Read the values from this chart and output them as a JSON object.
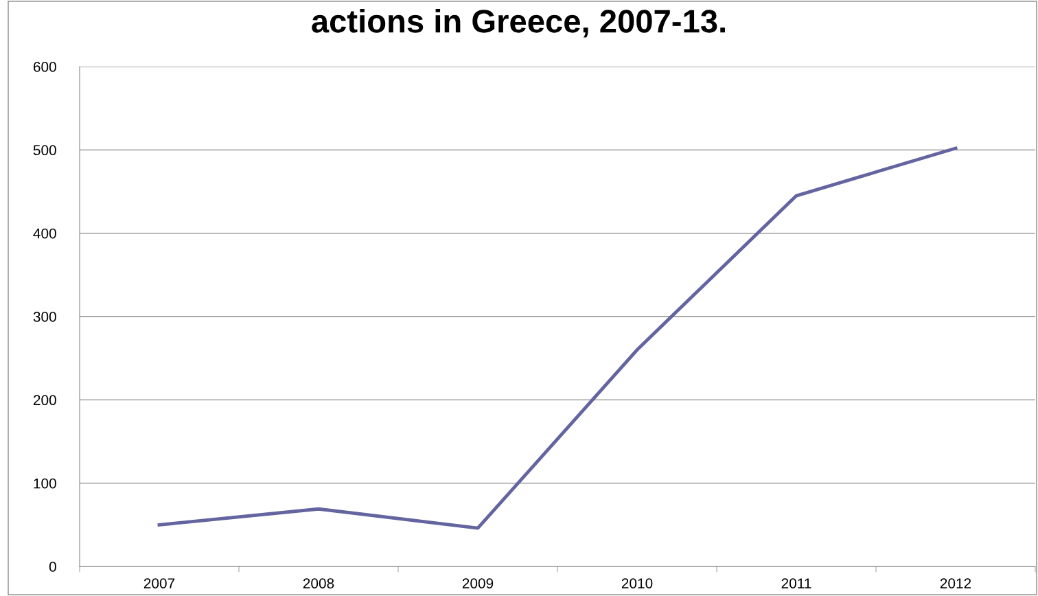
{
  "chart_data": {
    "type": "line",
    "title": "actions in Greece, 2007-13.",
    "categories": [
      "2007",
      "2008",
      "2009",
      "2010",
      "2011",
      "2012"
    ],
    "series": [
      {
        "color": "#6464a0",
        "values": [
          50,
          69,
          46,
          260,
          445,
          502
        ]
      }
    ],
    "ylim": [
      0,
      600
    ],
    "yticks": [
      0,
      100,
      200,
      300,
      400,
      500,
      600
    ],
    "grid": "y",
    "marker": "none",
    "line_style": "solid"
  }
}
